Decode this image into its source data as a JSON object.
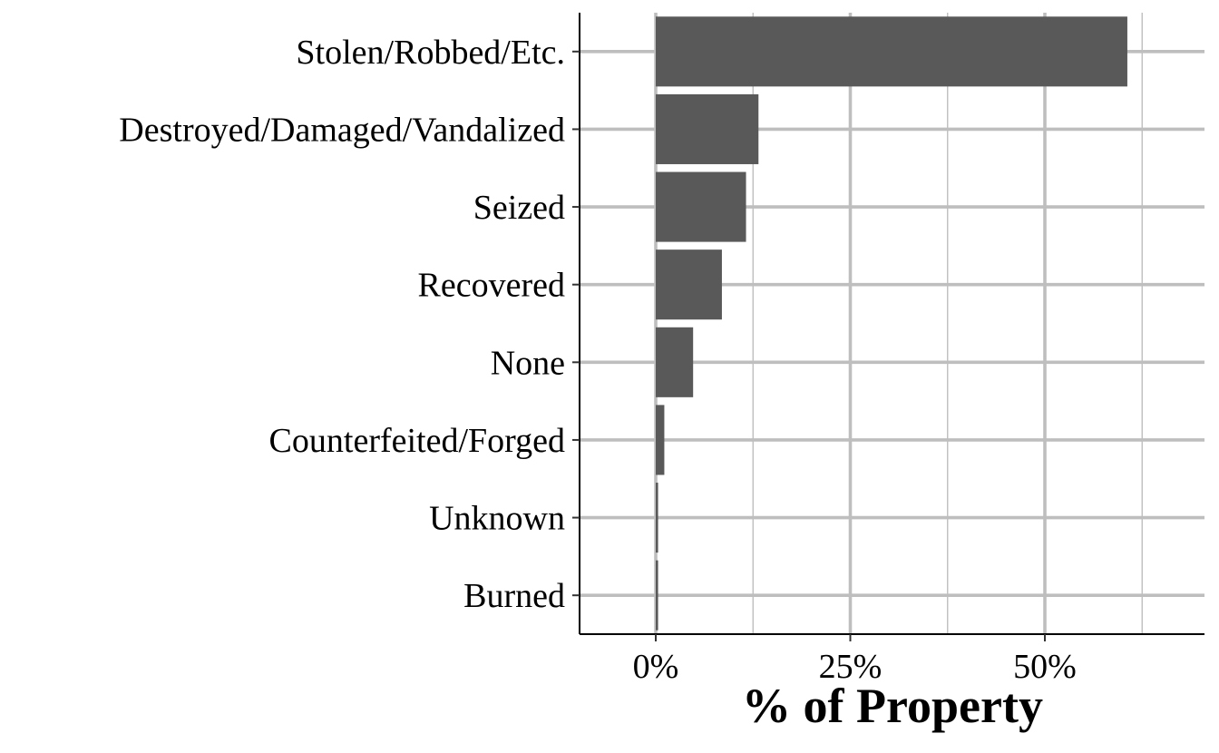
{
  "chart_data": {
    "type": "bar",
    "orientation": "horizontal",
    "title": "",
    "xlabel": "% of Property",
    "ylabel": "",
    "categories": [
      "Stolen/Robbed/Etc.",
      "Destroyed/Damaged/Vandalized",
      "Seized",
      "Recovered",
      "None",
      "Counterfeited/Forged",
      "Unknown",
      "Burned"
    ],
    "values": [
      60.6,
      13.2,
      11.6,
      8.5,
      4.8,
      1.1,
      0.3,
      0.3
    ],
    "x_ticks": [
      0,
      25,
      50
    ],
    "x_tick_labels": [
      "0%",
      "25%",
      "50%"
    ],
    "xlim": [
      -9.8,
      70.5
    ],
    "grid": true,
    "legend": "none",
    "bar_color": "#595959",
    "grid_color": "#bebebe"
  }
}
